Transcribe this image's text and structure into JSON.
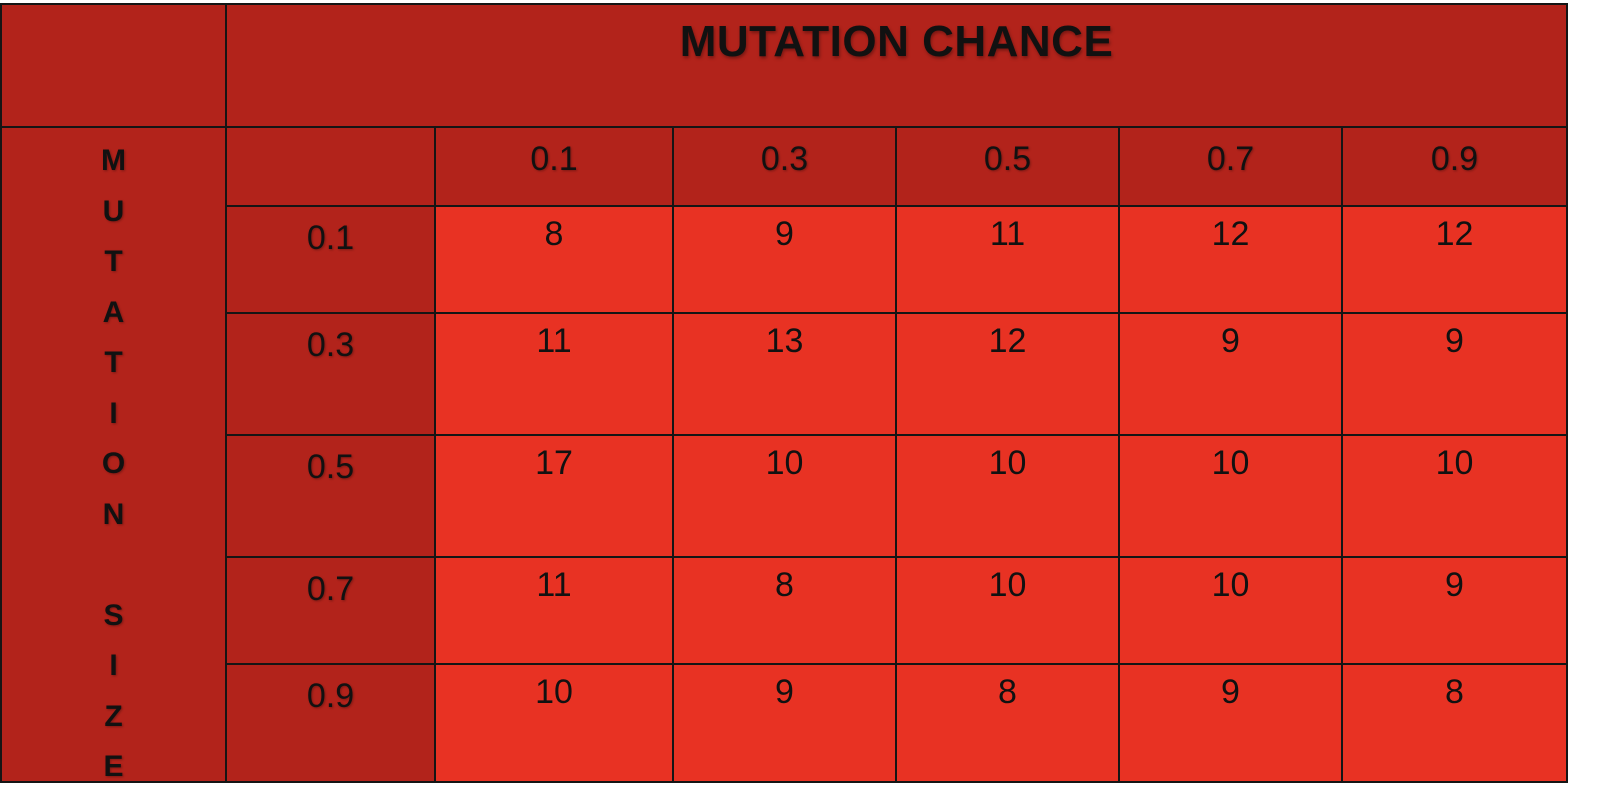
{
  "chart_data": {
    "type": "table",
    "title": "MUTATION CHANCE",
    "row_axis_label": "MUTATION SIZE",
    "column_values": [
      "0.1",
      "0.3",
      "0.5",
      "0.7",
      "0.9"
    ],
    "row_values": [
      "0.1",
      "0.3",
      "0.5",
      "0.7",
      "0.9"
    ],
    "cells": [
      [
        8,
        9,
        11,
        12,
        12
      ],
      [
        11,
        13,
        12,
        9,
        9
      ],
      [
        17,
        10,
        10,
        10,
        10
      ],
      [
        11,
        8,
        10,
        10,
        9
      ],
      [
        10,
        9,
        8,
        9,
        8
      ]
    ],
    "header_color": "#b2231b",
    "cell_color": "#e83223"
  }
}
